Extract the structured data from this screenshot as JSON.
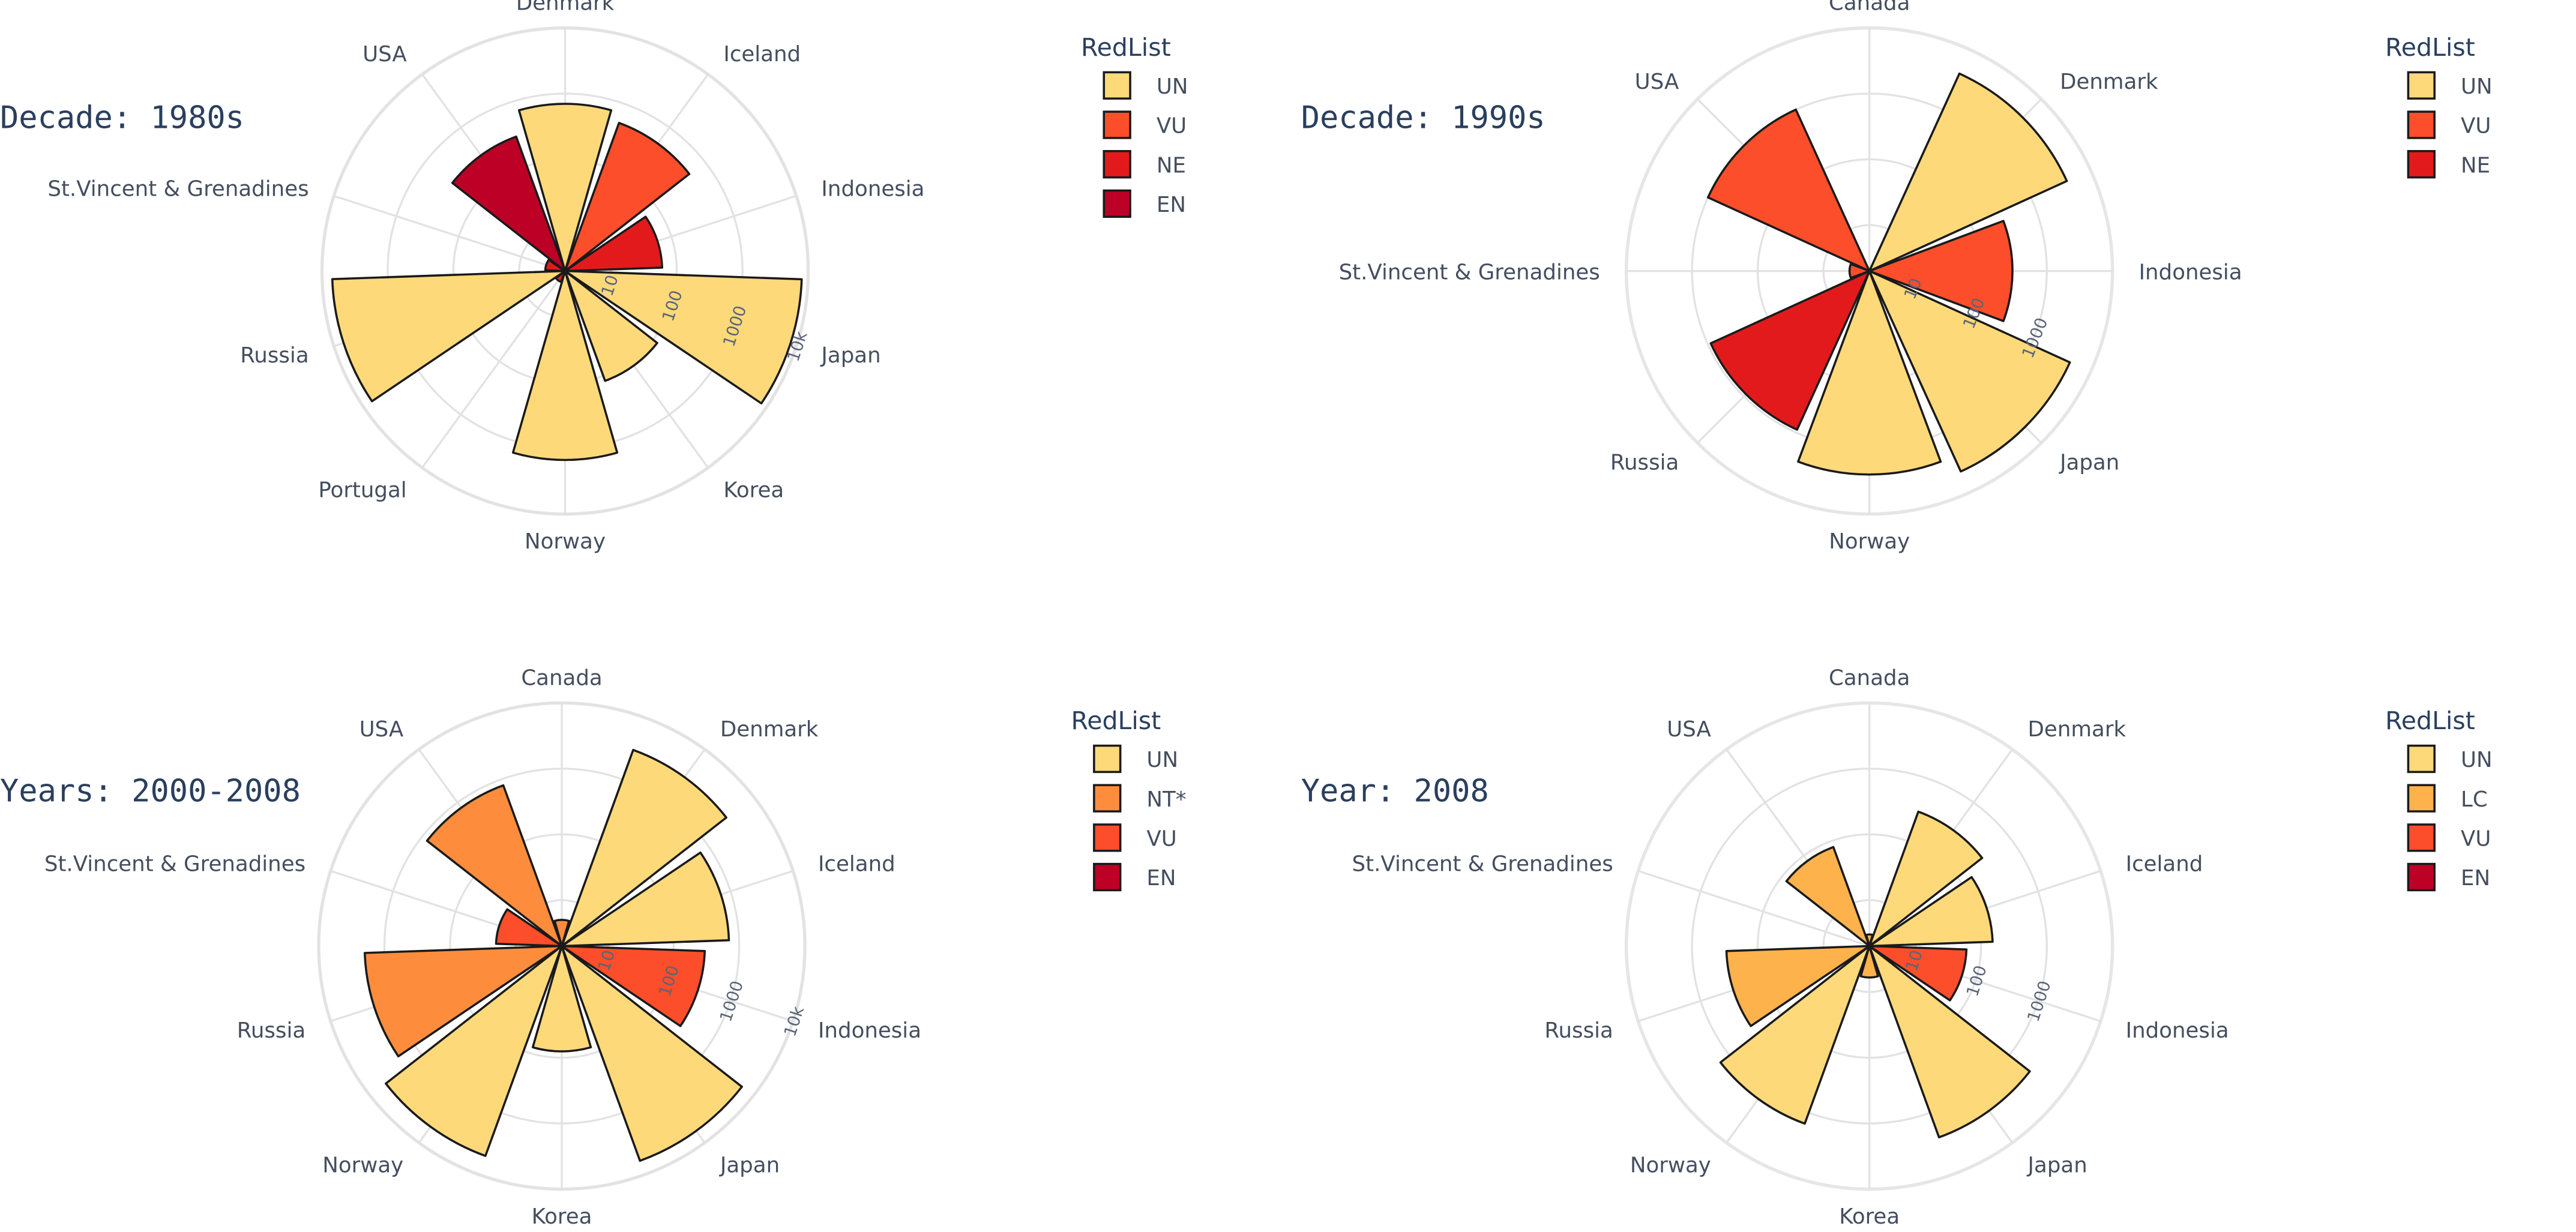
{
  "chart_data": [
    {
      "type": "barpolar",
      "title": "Decade: 1980s",
      "categories": [
        "Denmark",
        "Iceland",
        "Indonesia",
        "Japan",
        "Korea",
        "Norway",
        "Portugal",
        "Russia",
        "St.Vincent & Grenadines",
        "USA"
      ],
      "radial_axis": {
        "scale": "log",
        "ticks": [
          "10",
          "100",
          "1000",
          "10k"
        ],
        "range": [
          1,
          10000
        ]
      },
      "legend": {
        "title": "RedList",
        "placement": "top-right"
      },
      "series": [
        {
          "name": "UN",
          "color": "#fdd97a",
          "values": [
            700,
            null,
            null,
            8000,
            120,
            1500,
            null,
            7000,
            null,
            null
          ]
        },
        {
          "name": "VU",
          "color": "#fc4e2a",
          "values": [
            null,
            500,
            null,
            null,
            null,
            null,
            null,
            null,
            null,
            null
          ]
        },
        {
          "name": "NE",
          "color": "#e31a1c",
          "values": [
            null,
            null,
            60,
            null,
            null,
            null,
            3,
            null,
            4,
            null
          ]
        },
        {
          "name": "EN",
          "color": "#bd0026",
          "values": [
            null,
            null,
            null,
            null,
            null,
            null,
            null,
            null,
            null,
            300
          ]
        }
      ]
    },
    {
      "type": "barpolar",
      "title": "Decade: 1990s",
      "categories": [
        "Canada",
        "Denmark",
        "Indonesia",
        "Japan",
        "Norway",
        "Russia",
        "St.Vincent & Grenadines",
        "USA"
      ],
      "radial_axis": {
        "scale": "log",
        "ticks": [
          "10",
          "100",
          "1000"
        ],
        "range": [
          1,
          10000
        ]
      },
      "legend": {
        "title": "RedList",
        "placement": "top-right"
      },
      "series": [
        {
          "name": "UN",
          "color": "#fdd97a",
          "values": [
            null,
            4000,
            null,
            4500,
            2500,
            null,
            null,
            null
          ]
        },
        {
          "name": "VU",
          "color": "#fc4e2a",
          "values": [
            2,
            null,
            300,
            null,
            null,
            null,
            4,
            1000
          ]
        },
        {
          "name": "NE",
          "color": "#e31a1c",
          "values": [
            null,
            null,
            null,
            null,
            null,
            900,
            null,
            null
          ]
        }
      ]
    },
    {
      "type": "barpolar",
      "title": "Years: 2000-2008",
      "categories": [
        "Canada",
        "Denmark",
        "Iceland",
        "Indonesia",
        "Japan",
        "Korea",
        "Norway",
        "Russia",
        "St.Vincent & Grenadines",
        "USA"
      ],
      "radial_axis": {
        "scale": "log",
        "ticks": [
          "10",
          "100",
          "1000",
          "10k"
        ],
        "range": [
          1,
          10000
        ]
      },
      "legend": {
        "title": "RedList",
        "placement": "top-right"
      },
      "series": [
        {
          "name": "UN",
          "color": "#fdd97a",
          "values": [
            null,
            3000,
            700,
            null,
            6000,
            80,
            5000,
            null,
            null,
            null
          ]
        },
        {
          "name": "NT*",
          "color": "#fd8d3c",
          "values": [
            5,
            null,
            null,
            null,
            null,
            null,
            null,
            2000,
            null,
            800
          ]
        },
        {
          "name": "VU",
          "color": "#fc4e2a",
          "values": [
            null,
            null,
            null,
            300,
            null,
            null,
            null,
            null,
            20,
            null
          ]
        },
        {
          "name": "EN",
          "color": "#bd0026",
          "values": [
            null,
            null,
            null,
            null,
            null,
            null,
            null,
            null,
            null,
            null
          ]
        }
      ]
    },
    {
      "type": "barpolar",
      "title": "Year: 2008",
      "categories": [
        "Canada",
        "Denmark",
        "Iceland",
        "Indonesia",
        "Japan",
        "Korea",
        "Norway",
        "Russia",
        "St.Vincent & Grenadines",
        "USA"
      ],
      "radial_axis": {
        "scale": "log",
        "ticks": [
          "10",
          "100",
          "1000"
        ],
        "range": [
          1,
          3000
        ]
      },
      "legend": {
        "title": "RedList",
        "placement": "top-right"
      },
      "series": [
        {
          "name": "UN",
          "color": "#fdd97a",
          "values": [
            null,
            300,
            150,
            null,
            2500,
            null,
            1500,
            null,
            null,
            null
          ]
        },
        {
          "name": "LC",
          "color": "#feb24c",
          "values": [
            3,
            null,
            null,
            null,
            null,
            6,
            null,
            300,
            1.5,
            80
          ]
        },
        {
          "name": "VU",
          "color": "#fc4e2a",
          "values": [
            null,
            null,
            null,
            60,
            null,
            null,
            null,
            null,
            null,
            null
          ]
        },
        {
          "name": "EN",
          "color": "#bd0026",
          "values": [
            null,
            null,
            null,
            null,
            null,
            null,
            null,
            null,
            null,
            null
          ]
        }
      ]
    }
  ]
}
